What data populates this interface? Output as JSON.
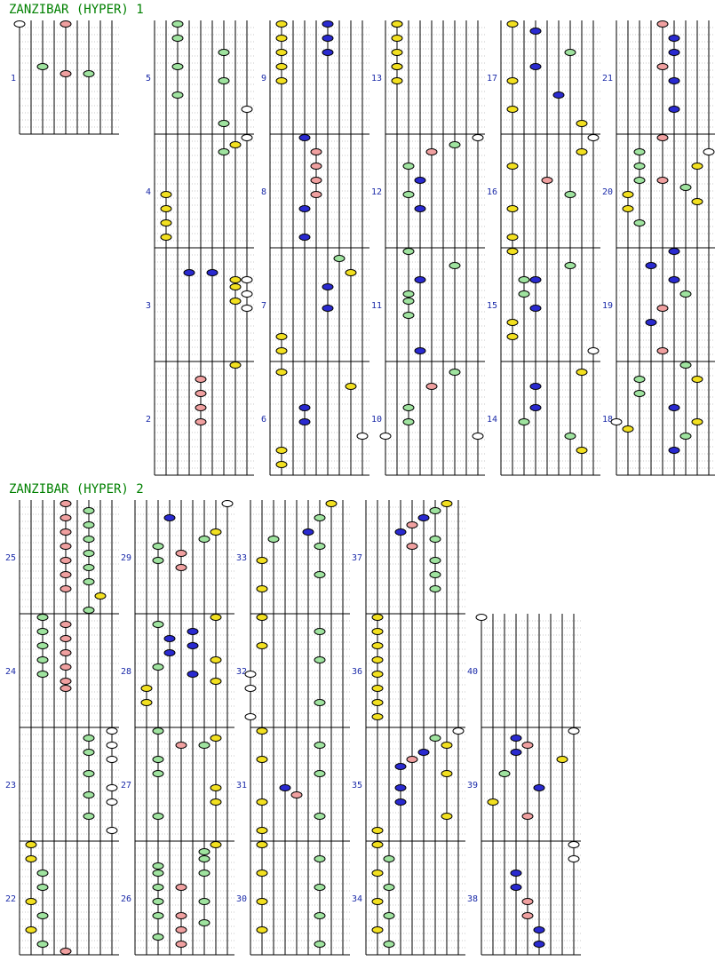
{
  "titles": [
    "ZANZIBAR (HYPER) 1",
    "ZANZIBAR (HYPER) 2"
  ],
  "colors": {
    "white": "#ffffff",
    "yellow": "#f2e020",
    "green": "#9fe39f",
    "blue": "#2a2ad0",
    "red": "#f0a0a0",
    "line": "#000000",
    "grid": "#c8c8c8",
    "title": "#008000",
    "measure_number": "#1a2aa8"
  },
  "lanes": [
    "white",
    "yellow",
    "green",
    "blue",
    "red",
    "blue",
    "green",
    "yellow",
    "white"
  ],
  "rows_per_measure": 16,
  "measures": [
    {
      "n": "1",
      "notes": [
        [
          0,
          0
        ],
        [
          0,
          4
        ],
        [
          6,
          2
        ],
        [
          7,
          4
        ],
        [
          7,
          6
        ]
      ]
    },
    {
      "n": "2",
      "notes": [
        [
          0,
          7
        ],
        [
          2,
          4
        ],
        [
          4,
          4
        ],
        [
          6,
          4
        ],
        [
          8,
          4
        ]
      ]
    },
    {
      "n": "3",
      "notes": [
        [
          3,
          3
        ],
        [
          3,
          5
        ],
        [
          4,
          7
        ],
        [
          4,
          8
        ],
        [
          5,
          7
        ],
        [
          6,
          8
        ],
        [
          7,
          7
        ],
        [
          8,
          8
        ]
      ]
    },
    {
      "n": "4",
      "notes": [
        [
          8,
          1
        ],
        [
          10,
          1
        ],
        [
          12,
          1
        ],
        [
          14,
          1
        ],
        [
          0,
          8
        ],
        [
          1,
          7
        ],
        [
          2,
          6
        ]
      ]
    },
    {
      "n": "5",
      "notes": [
        [
          0,
          2
        ],
        [
          2,
          2
        ],
        [
          4,
          6
        ],
        [
          6,
          2
        ],
        [
          8,
          6
        ],
        [
          10,
          2
        ],
        [
          12,
          8
        ],
        [
          14,
          6
        ]
      ]
    },
    {
      "n": "6",
      "notes": [
        [
          1,
          1
        ],
        [
          3,
          7
        ],
        [
          6,
          3
        ],
        [
          8,
          3
        ],
        [
          10,
          8
        ],
        [
          12,
          1
        ],
        [
          14,
          1
        ]
      ]
    },
    {
      "n": "7",
      "notes": [
        [
          1,
          6
        ],
        [
          3,
          7
        ],
        [
          5,
          5
        ],
        [
          8,
          5
        ],
        [
          12,
          1
        ],
        [
          14,
          1
        ]
      ]
    },
    {
      "n": "8",
      "notes": [
        [
          0,
          3
        ],
        [
          2,
          4
        ],
        [
          4,
          4
        ],
        [
          6,
          4
        ],
        [
          8,
          4
        ],
        [
          10,
          3
        ],
        [
          14,
          3
        ]
      ]
    },
    {
      "n": "9",
      "notes": [
        [
          0,
          1
        ],
        [
          2,
          1
        ],
        [
          4,
          1
        ],
        [
          6,
          1
        ],
        [
          8,
          1
        ],
        [
          0,
          5
        ],
        [
          2,
          5
        ],
        [
          4,
          5
        ]
      ]
    },
    {
      "n": "10",
      "notes": [
        [
          1,
          6
        ],
        [
          3,
          4
        ],
        [
          6,
          2
        ],
        [
          8,
          2
        ],
        [
          10,
          0
        ],
        [
          10,
          8
        ]
      ]
    },
    {
      "n": "11",
      "notes": [
        [
          0,
          2
        ],
        [
          2,
          6
        ],
        [
          4,
          3
        ],
        [
          6,
          2
        ],
        [
          7,
          2
        ],
        [
          9,
          2
        ],
        [
          14,
          3
        ]
      ]
    },
    {
      "n": "12",
      "notes": [
        [
          0,
          8
        ],
        [
          1,
          6
        ],
        [
          2,
          4
        ],
        [
          4,
          2
        ],
        [
          6,
          3
        ],
        [
          8,
          2
        ],
        [
          10,
          3
        ]
      ]
    },
    {
      "n": "13",
      "notes": [
        [
          0,
          1
        ],
        [
          2,
          1
        ],
        [
          4,
          1
        ],
        [
          6,
          1
        ],
        [
          8,
          1
        ],
        [
          0,
          1
        ],
        [
          6,
          1
        ]
      ]
    },
    {
      "n": "14",
      "notes": [
        [
          1,
          7
        ],
        [
          3,
          3
        ],
        [
          6,
          3
        ],
        [
          8,
          2
        ],
        [
          10,
          6
        ],
        [
          12,
          7
        ]
      ]
    },
    {
      "n": "15",
      "notes": [
        [
          0,
          1
        ],
        [
          2,
          6
        ],
        [
          4,
          2
        ],
        [
          4,
          3
        ],
        [
          6,
          2
        ],
        [
          8,
          3
        ],
        [
          10,
          1
        ],
        [
          12,
          1
        ],
        [
          14,
          8
        ]
      ]
    },
    {
      "n": "16",
      "notes": [
        [
          0,
          8
        ],
        [
          2,
          7
        ],
        [
          4,
          1
        ],
        [
          6,
          4
        ],
        [
          8,
          6
        ],
        [
          10,
          1
        ],
        [
          14,
          1
        ]
      ]
    },
    {
      "n": "17",
      "notes": [
        [
          0,
          1
        ],
        [
          1,
          3
        ],
        [
          4,
          6
        ],
        [
          6,
          3
        ],
        [
          8,
          1
        ],
        [
          10,
          5
        ],
        [
          12,
          1
        ],
        [
          14,
          7
        ]
      ]
    },
    {
      "n": "18",
      "notes": [
        [
          0,
          6
        ],
        [
          2,
          2
        ],
        [
          2,
          7
        ],
        [
          4,
          2
        ],
        [
          6,
          5
        ],
        [
          8,
          0
        ],
        [
          8,
          7
        ],
        [
          9,
          1
        ],
        [
          10,
          6
        ],
        [
          12,
          5
        ]
      ]
    },
    {
      "n": "19",
      "notes": [
        [
          0,
          5
        ],
        [
          2,
          3
        ],
        [
          4,
          5
        ],
        [
          6,
          6
        ],
        [
          8,
          4
        ],
        [
          10,
          3
        ],
        [
          14,
          4
        ]
      ]
    },
    {
      "n": "20",
      "notes": [
        [
          0,
          4
        ],
        [
          2,
          2
        ],
        [
          2,
          8
        ],
        [
          4,
          2
        ],
        [
          4,
          7
        ],
        [
          6,
          2
        ],
        [
          6,
          4
        ],
        [
          7,
          6
        ],
        [
          8,
          1
        ],
        [
          9,
          7
        ],
        [
          10,
          1
        ],
        [
          12,
          2
        ]
      ]
    },
    {
      "n": "21",
      "notes": [
        [
          0,
          4
        ],
        [
          2,
          5
        ],
        [
          4,
          5
        ],
        [
          6,
          4
        ],
        [
          8,
          5
        ],
        [
          12,
          5
        ]
      ]
    },
    {
      "n": "22",
      "notes": [
        [
          0,
          1
        ],
        [
          2,
          1
        ],
        [
          4,
          2
        ],
        [
          6,
          2
        ],
        [
          8,
          1
        ],
        [
          10,
          2
        ],
        [
          12,
          1
        ],
        [
          14,
          2
        ],
        [
          15,
          4
        ]
      ]
    },
    {
      "n": "23",
      "notes": [
        [
          0,
          8
        ],
        [
          1,
          6
        ],
        [
          2,
          8
        ],
        [
          3,
          6
        ],
        [
          4,
          8
        ],
        [
          6,
          6
        ],
        [
          8,
          8
        ],
        [
          9,
          6
        ],
        [
          10,
          8
        ],
        [
          12,
          6
        ],
        [
          14,
          8
        ]
      ]
    },
    {
      "n": "24",
      "notes": [
        [
          0,
          2
        ],
        [
          2,
          2
        ],
        [
          4,
          2
        ],
        [
          6,
          2
        ],
        [
          8,
          2
        ],
        [
          1,
          4
        ],
        [
          3,
          4
        ],
        [
          5,
          4
        ],
        [
          7,
          4
        ],
        [
          9,
          4
        ],
        [
          10,
          4
        ]
      ]
    },
    {
      "n": "25",
      "notes": [
        [
          0,
          4
        ],
        [
          1,
          6
        ],
        [
          2,
          4
        ],
        [
          3,
          6
        ],
        [
          4,
          4
        ],
        [
          5,
          6
        ],
        [
          6,
          4
        ],
        [
          7,
          6
        ],
        [
          8,
          4
        ],
        [
          9,
          6
        ],
        [
          10,
          4
        ],
        [
          11,
          6
        ],
        [
          12,
          4
        ],
        [
          13,
          7
        ],
        [
          15,
          6
        ]
      ]
    },
    {
      "n": "26",
      "notes": [
        [
          0,
          7
        ],
        [
          1,
          6
        ],
        [
          2,
          6
        ],
        [
          3,
          2
        ],
        [
          4,
          2
        ],
        [
          4,
          6
        ],
        [
          6,
          2
        ],
        [
          6,
          4
        ],
        [
          8,
          6
        ],
        [
          8,
          2
        ],
        [
          10,
          4
        ],
        [
          10,
          2
        ],
        [
          11,
          6
        ],
        [
          12,
          4
        ],
        [
          13,
          2
        ],
        [
          14,
          4
        ]
      ]
    },
    {
      "n": "27",
      "notes": [
        [
          0,
          2
        ],
        [
          1,
          7
        ],
        [
          2,
          6
        ],
        [
          2,
          4
        ],
        [
          4,
          2
        ],
        [
          6,
          2
        ],
        [
          8,
          7
        ],
        [
          10,
          7
        ],
        [
          12,
          2
        ]
      ]
    },
    {
      "n": "28",
      "notes": [
        [
          0,
          7
        ],
        [
          1,
          2
        ],
        [
          2,
          5
        ],
        [
          3,
          3
        ],
        [
          4,
          5
        ],
        [
          5,
          3
        ],
        [
          6,
          7
        ],
        [
          7,
          2
        ],
        [
          8,
          5
        ],
        [
          9,
          7
        ],
        [
          10,
          1
        ],
        [
          12,
          1
        ]
      ]
    },
    {
      "n": "29",
      "notes": [
        [
          0,
          8
        ],
        [
          2,
          3
        ],
        [
          4,
          7
        ],
        [
          5,
          6
        ],
        [
          6,
          2
        ],
        [
          7,
          4
        ],
        [
          8,
          2
        ],
        [
          9,
          4
        ]
      ]
    },
    {
      "n": "30",
      "notes": [
        [
          0,
          1
        ],
        [
          2,
          6
        ],
        [
          4,
          1
        ],
        [
          6,
          6
        ],
        [
          8,
          1
        ],
        [
          10,
          6
        ],
        [
          12,
          1
        ],
        [
          14,
          6
        ]
      ]
    },
    {
      "n": "31",
      "notes": [
        [
          0,
          1
        ],
        [
          2,
          6
        ],
        [
          4,
          1
        ],
        [
          6,
          6
        ],
        [
          8,
          3
        ],
        [
          9,
          4
        ],
        [
          10,
          1
        ],
        [
          12,
          6
        ],
        [
          14,
          1
        ]
      ]
    },
    {
      "n": "32",
      "notes": [
        [
          0,
          1
        ],
        [
          2,
          6
        ],
        [
          4,
          1
        ],
        [
          6,
          6
        ],
        [
          8,
          0
        ],
        [
          10,
          0
        ],
        [
          12,
          6
        ],
        [
          14,
          0
        ]
      ]
    },
    {
      "n": "33",
      "notes": [
        [
          0,
          7
        ],
        [
          2,
          6
        ],
        [
          4,
          5
        ],
        [
          5,
          2
        ],
        [
          6,
          6
        ],
        [
          8,
          1
        ],
        [
          10,
          6
        ],
        [
          12,
          1
        ]
      ]
    },
    {
      "n": "34",
      "notes": [
        [
          0,
          1
        ],
        [
          2,
          2
        ],
        [
          4,
          1
        ],
        [
          6,
          2
        ],
        [
          8,
          1
        ],
        [
          10,
          2
        ],
        [
          12,
          1
        ],
        [
          14,
          2
        ]
      ]
    },
    {
      "n": "35",
      "notes": [
        [
          0,
          8
        ],
        [
          1,
          6
        ],
        [
          2,
          7
        ],
        [
          3,
          5
        ],
        [
          4,
          4
        ],
        [
          5,
          3
        ],
        [
          6,
          7
        ],
        [
          8,
          3
        ],
        [
          10,
          3
        ],
        [
          12,
          7
        ],
        [
          14,
          1
        ]
      ]
    },
    {
      "n": "36",
      "notes": [
        [
          0,
          1
        ],
        [
          2,
          1
        ],
        [
          4,
          1
        ],
        [
          6,
          1
        ],
        [
          8,
          1
        ],
        [
          10,
          1
        ],
        [
          12,
          1
        ],
        [
          14,
          1
        ]
      ]
    },
    {
      "n": "37",
      "notes": [
        [
          0,
          7
        ],
        [
          1,
          6
        ],
        [
          2,
          5
        ],
        [
          3,
          4
        ],
        [
          4,
          3
        ],
        [
          5,
          6
        ],
        [
          6,
          4
        ],
        [
          8,
          6
        ],
        [
          10,
          6
        ],
        [
          12,
          6
        ]
      ]
    },
    {
      "n": "38",
      "notes": [
        [
          0,
          8
        ],
        [
          2,
          8
        ],
        [
          4,
          3
        ],
        [
          6,
          3
        ],
        [
          8,
          4
        ],
        [
          10,
          4
        ],
        [
          12,
          5
        ],
        [
          14,
          5
        ]
      ]
    },
    {
      "n": "39",
      "notes": [
        [
          0,
          8
        ],
        [
          1,
          3
        ],
        [
          2,
          4
        ],
        [
          3,
          3
        ],
        [
          4,
          7
        ],
        [
          6,
          2
        ],
        [
          8,
          5
        ],
        [
          10,
          1
        ],
        [
          12,
          4
        ]
      ]
    },
    {
      "n": "40",
      "notes": [
        [
          0,
          0
        ]
      ]
    }
  ]
}
